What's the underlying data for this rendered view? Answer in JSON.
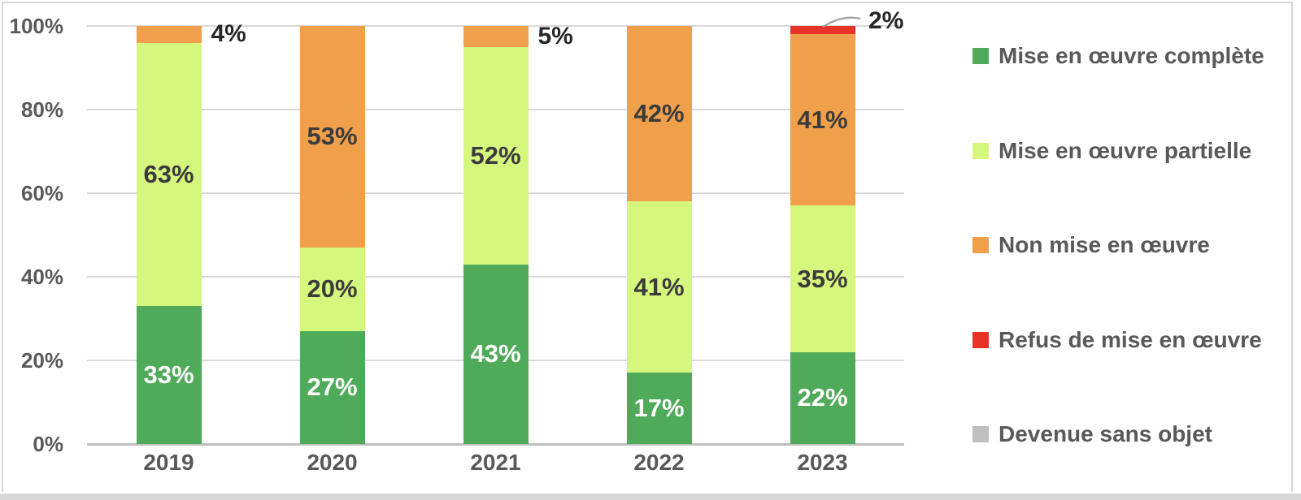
{
  "palette": {
    "background": "#FFFFFF",
    "frame_border": "#D8D8D8",
    "bottom_strip": "#D9D9D9",
    "grid": "#D9D9D9",
    "baseline": "#BFBFBF",
    "axis_text": "#595959",
    "inside_label_light": "#FFFFFF",
    "inside_label_dark": "#3B3B3B",
    "outside_label": "#262626",
    "leader_line": "#A6A6A6"
  },
  "chart_data": {
    "type": "bar",
    "variant": "stacked-100-percent",
    "title": "",
    "xlabel": "",
    "ylabel": "",
    "ylim": [
      0,
      100
    ],
    "grid": true,
    "legend_position": "right",
    "categories": [
      "2019",
      "2020",
      "2021",
      "2022",
      "2023"
    ],
    "series": [
      {
        "key": "complete",
        "name": "Mise en œuvre complète",
        "color": "#4FAB59",
        "label_style": "light",
        "values": [
          33,
          27,
          43,
          17,
          22
        ]
      },
      {
        "key": "partielle",
        "name": "Mise en œuvre partielle",
        "color": "#D6F77E",
        "label_style": "dark",
        "values": [
          63,
          20,
          52,
          41,
          35
        ]
      },
      {
        "key": "non-mise",
        "name": "Non mise en œuvre",
        "color": "#F0A04B",
        "label_style": "dark",
        "values": [
          4,
          53,
          5,
          42,
          41
        ]
      },
      {
        "key": "refus",
        "name": "Refus de mise en œuvre",
        "color": "#E73228",
        "label_style": "dark",
        "values": [
          0,
          0,
          0,
          0,
          2
        ]
      },
      {
        "key": "sans-objet",
        "name": "Devenue sans objet",
        "color": "#BFBFBF",
        "label_style": "dark",
        "values": [
          0,
          0,
          0,
          0,
          0
        ]
      }
    ],
    "y_ticks": [
      {
        "value": 0,
        "label": "0%"
      },
      {
        "value": 20,
        "label": "20%"
      },
      {
        "value": 40,
        "label": "40%"
      },
      {
        "value": 60,
        "label": "60%"
      },
      {
        "value": 80,
        "label": "80%"
      },
      {
        "value": 100,
        "label": "100%"
      }
    ],
    "data_label_format": "{v}%",
    "outside_labels": [
      {
        "category": "2019",
        "series_key": "non-mise",
        "text": "4%"
      },
      {
        "category": "2021",
        "series_key": "non-mise",
        "text": "5%"
      },
      {
        "category": "2023",
        "series_key": "refus",
        "text": "2%",
        "leader": true
      }
    ]
  }
}
